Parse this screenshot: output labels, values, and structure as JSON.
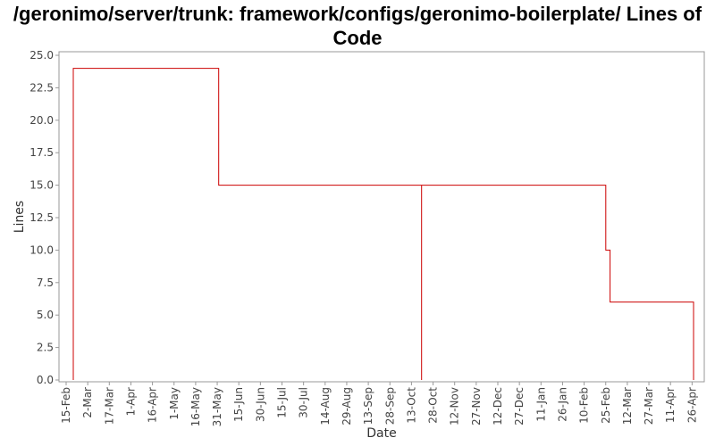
{
  "chart_data": {
    "type": "line",
    "step": true,
    "title": "/geronimo/server/trunk: framework/configs/geronimo-boilerplate/ Lines of Code",
    "xlabel": "Date",
    "ylabel": "Lines",
    "ylim": [
      0,
      25
    ],
    "yticks": [
      "0.0",
      "2.5",
      "5.0",
      "7.5",
      "10.0",
      "12.5",
      "15.0",
      "17.5",
      "20.0",
      "22.5",
      "25.0"
    ],
    "xticks": [
      "15-Feb",
      "2-Mar",
      "17-Mar",
      "1-Apr",
      "16-Apr",
      "1-May",
      "16-May",
      "31-May",
      "15-Jun",
      "30-Jun",
      "15-Jul",
      "30-Jul",
      "14-Aug",
      "29-Aug",
      "13-Sep",
      "28-Sep",
      "13-Oct",
      "28-Oct",
      "12-Nov",
      "27-Nov",
      "12-Dec",
      "27-Dec",
      "11-Jan",
      "26-Jan",
      "10-Feb",
      "25-Feb",
      "12-Mar",
      "27-Mar",
      "11-Apr",
      "26-Apr"
    ],
    "grid": false,
    "series": [
      {
        "color": "#cc0000",
        "points": [
          {
            "x": "20-Feb",
            "y": 0
          },
          {
            "x": "20-Feb",
            "y": 24
          },
          {
            "x": "1-Jun",
            "y": 24
          },
          {
            "x": "1-Jun",
            "y": 15
          },
          {
            "x": "20-Oct",
            "y": 15
          },
          {
            "x": "20-Oct",
            "y": 0
          },
          {
            "x": "20-Oct",
            "y": 15
          },
          {
            "x": "25-Feb",
            "y": 15
          },
          {
            "x": "25-Feb",
            "y": 10
          },
          {
            "x": "28-Feb",
            "y": 10
          },
          {
            "x": "28-Feb",
            "y": 6
          },
          {
            "x": "27-Apr",
            "y": 6
          },
          {
            "x": "27-Apr",
            "y": 0
          }
        ]
      }
    ]
  }
}
